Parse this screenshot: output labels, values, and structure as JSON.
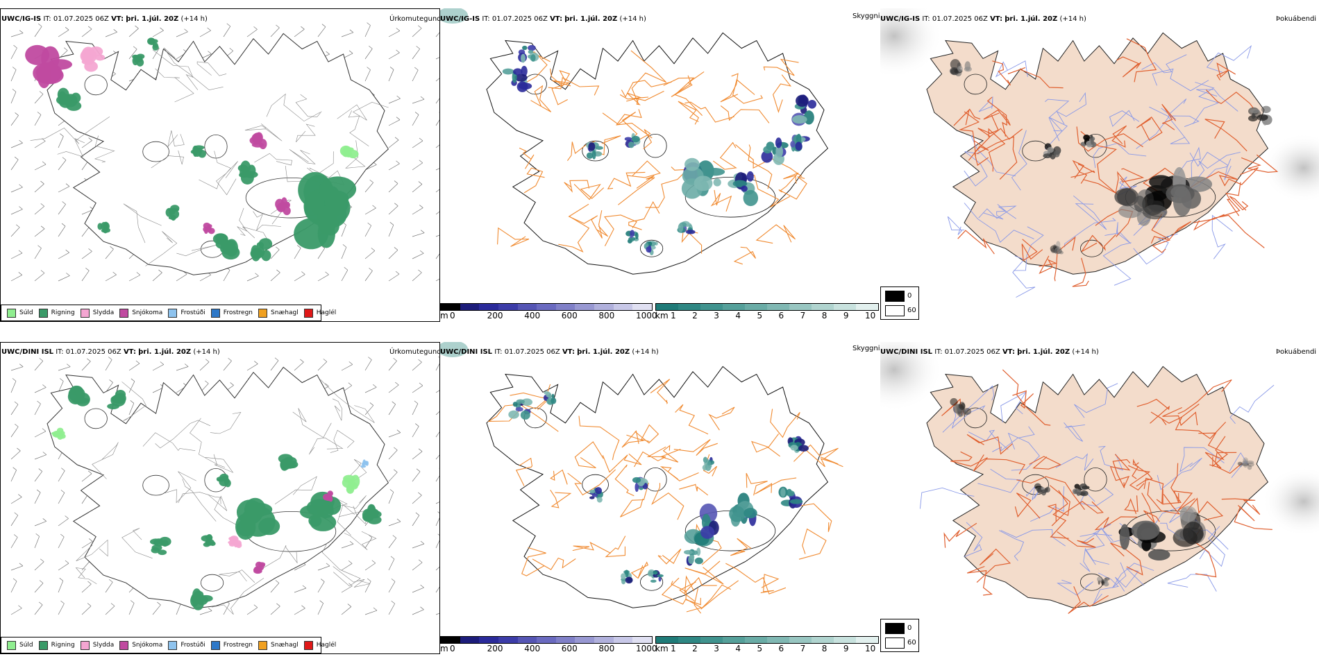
{
  "rows": [
    {
      "model": "UWC/IG-IS",
      "it_label": "IT:",
      "it_value": "01.07.2025 06Z",
      "vt_label": "VT:",
      "vt_value": "þri. 1.júl. 20Z",
      "lead": "(+14 h)"
    },
    {
      "model": "UWC/DINI ISL",
      "it_label": "IT:",
      "it_value": "01.07.2025 06Z",
      "vt_label": "VT:",
      "vt_value": "þri. 1.júl. 20Z",
      "lead": "(+14 h)"
    }
  ],
  "panels": {
    "precip_title": "Úrkomutegund",
    "vis_title": "Skyggni",
    "cloud_title": "Þokuábendi"
  },
  "precip_legend": [
    {
      "label": "Súld",
      "color": "#90ee90"
    },
    {
      "label": "Rigning",
      "color": "#3a9a68"
    },
    {
      "label": "Slydda",
      "color": "#f4a6d2"
    },
    {
      "label": "Snjókoma",
      "color": "#c04aa0"
    },
    {
      "label": "Frostúði",
      "color": "#8ec3ee"
    },
    {
      "label": "Frostregn",
      "color": "#2d78c8"
    },
    {
      "label": "Snæhagl",
      "color": "#f0a020"
    },
    {
      "label": "Haglél",
      "color": "#e01818"
    }
  ],
  "height_bar": {
    "unit": "m",
    "ticks": [
      "0",
      "200",
      "400",
      "600",
      "800",
      "1000"
    ],
    "colors": [
      "#000000",
      "#1c1c7a",
      "#2a2a9a",
      "#3c3ca8",
      "#5555b4",
      "#6a6ac0",
      "#8080c8",
      "#9898d2",
      "#b0b0dc",
      "#c8c8e8",
      "#e0e0f2"
    ]
  },
  "vis_bar": {
    "unit": "km",
    "ticks": [
      "1",
      "2",
      "3",
      "4",
      "5",
      "6",
      "7",
      "8",
      "9",
      "10"
    ],
    "colors": [
      "#1f7b78",
      "#2e8783",
      "#40938e",
      "#55a09a",
      "#6aaca6",
      "#80b8b3",
      "#98c6c1",
      "#b0d4cf",
      "#c8e2de",
      "#e2f0ee"
    ]
  },
  "cloud_legend": [
    {
      "label": "0",
      "color": "#000000"
    },
    {
      "label": "60",
      "color": "#ffffff"
    }
  ],
  "colors": {
    "land_fill": "#f3dccb",
    "roads": "#e06030",
    "rivers": "#8898e8",
    "coast": "#222222",
    "orange_roads": "#f08a30"
  }
}
